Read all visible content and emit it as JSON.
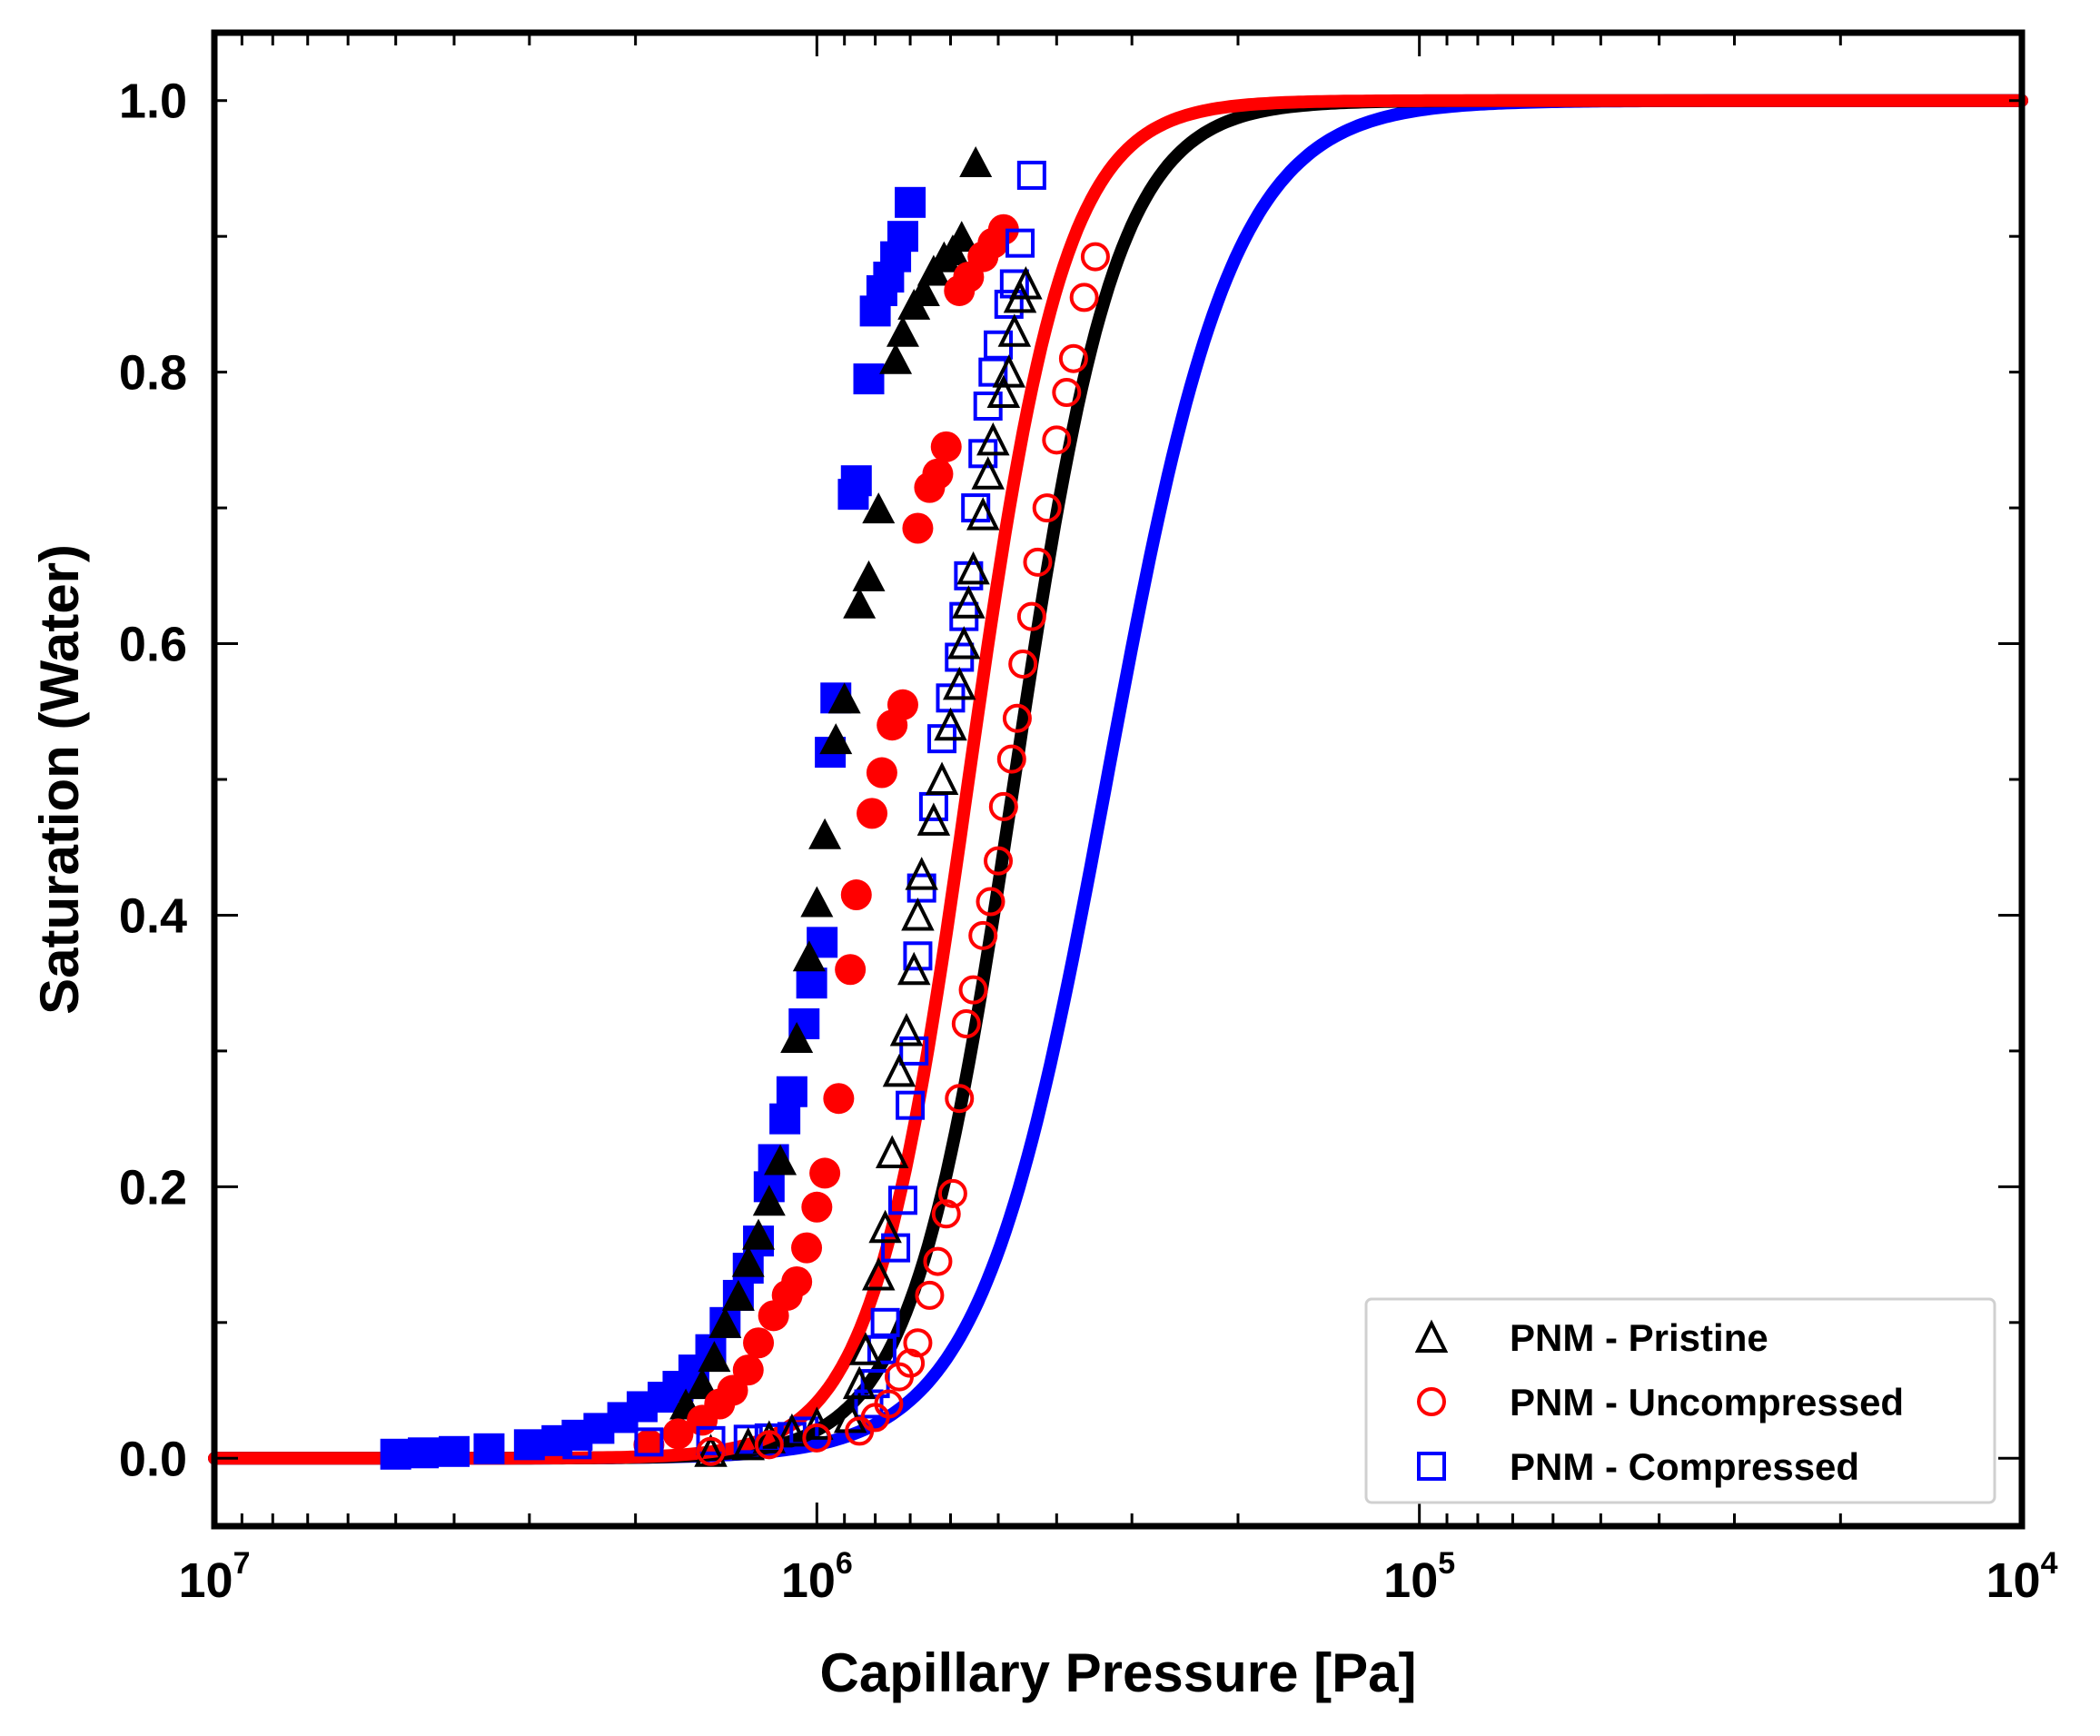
{
  "chart_data": {
    "type": "scatter",
    "xlabel": "Capillary Pressure [Pa]",
    "ylabel": "Saturation (Water)",
    "xscale": "log",
    "xaxis_reversed": true,
    "xlim": [
      10000000,
      10000
    ],
    "ylim": [
      -0.05,
      1.05
    ],
    "x_ticks": [
      {
        "base": "10",
        "exp": "7",
        "value": 10000000
      },
      {
        "base": "10",
        "exp": "6",
        "value": 1000000
      },
      {
        "base": "10",
        "exp": "5",
        "value": 100000
      },
      {
        "base": "10",
        "exp": "4",
        "value": 10000
      }
    ],
    "y_ticks": [
      "0.0",
      "0.2",
      "0.4",
      "0.6",
      "0.8",
      "1.0"
    ],
    "grid": false,
    "legend_position": "lower right",
    "legend": [
      {
        "label": "PNM - Pristine",
        "marker": "triangle-open",
        "color": "#000000"
      },
      {
        "label": "PNM - Uncompressed",
        "marker": "circle-open",
        "color": "#ff0000"
      },
      {
        "label": "PNM - Compressed",
        "marker": "square-open",
        "color": "#0000ff"
      }
    ],
    "curves": [
      {
        "color": "#0000ff",
        "p50": 330000,
        "width": 0.105
      },
      {
        "color": "#000000",
        "p50": 470000,
        "width": 0.085
      },
      {
        "color": "#ff0000",
        "p50": 560000,
        "width": 0.08
      }
    ],
    "series": [
      {
        "marker": "square-filled",
        "color": "#0000ff",
        "points": [
          [
            5000000,
            0.003
          ],
          [
            4500000,
            0.004
          ],
          [
            4000000,
            0.005
          ],
          [
            3500000,
            0.007
          ],
          [
            3000000,
            0.01
          ],
          [
            2700000,
            0.013
          ],
          [
            2500000,
            0.017
          ],
          [
            2300000,
            0.022
          ],
          [
            2100000,
            0.03
          ],
          [
            1950000,
            0.038
          ],
          [
            1800000,
            0.045
          ],
          [
            1700000,
            0.053
          ],
          [
            1600000,
            0.065
          ],
          [
            1500000,
            0.08
          ],
          [
            1420000,
            0.1
          ],
          [
            1350000,
            0.12
          ],
          [
            1300000,
            0.14
          ],
          [
            1250000,
            0.16
          ],
          [
            1200000,
            0.2
          ],
          [
            1180000,
            0.22
          ],
          [
            1130000,
            0.25
          ],
          [
            1100000,
            0.27
          ],
          [
            1050000,
            0.32
          ],
          [
            1020000,
            0.35
          ],
          [
            980000,
            0.38
          ],
          [
            950000,
            0.52
          ],
          [
            930000,
            0.56
          ],
          [
            870000,
            0.71
          ],
          [
            860000,
            0.72
          ],
          [
            820000,
            0.795
          ],
          [
            800000,
            0.845
          ],
          [
            780000,
            0.86
          ],
          [
            760000,
            0.87
          ],
          [
            740000,
            0.885
          ],
          [
            720000,
            0.9
          ],
          [
            700000,
            0.925
          ]
        ]
      },
      {
        "marker": "triangle-filled",
        "color": "#000000",
        "points": [
          [
            1650000,
            0.04
          ],
          [
            1550000,
            0.055
          ],
          [
            1480000,
            0.075
          ],
          [
            1420000,
            0.1
          ],
          [
            1350000,
            0.12
          ],
          [
            1300000,
            0.145
          ],
          [
            1250000,
            0.165
          ],
          [
            1200000,
            0.19
          ],
          [
            1150000,
            0.22
          ],
          [
            1080000,
            0.31
          ],
          [
            1030000,
            0.37
          ],
          [
            1000000,
            0.41
          ],
          [
            970000,
            0.46
          ],
          [
            930000,
            0.53
          ],
          [
            900000,
            0.56
          ],
          [
            850000,
            0.63
          ],
          [
            820000,
            0.65
          ],
          [
            790000,
            0.7
          ],
          [
            740000,
            0.81
          ],
          [
            720000,
            0.83
          ],
          [
            690000,
            0.85
          ],
          [
            665000,
            0.86
          ],
          [
            640000,
            0.875
          ],
          [
            615000,
            0.885
          ],
          [
            595000,
            0.89
          ],
          [
            575000,
            0.9
          ],
          [
            545000,
            0.955
          ]
        ]
      },
      {
        "marker": "circle-filled",
        "color": "#ff0000",
        "points": [
          [
            1900000,
            0.01
          ],
          [
            1700000,
            0.018
          ],
          [
            1550000,
            0.028
          ],
          [
            1450000,
            0.04
          ],
          [
            1380000,
            0.05
          ],
          [
            1300000,
            0.065
          ],
          [
            1250000,
            0.085
          ],
          [
            1180000,
            0.105
          ],
          [
            1120000,
            0.12
          ],
          [
            1080000,
            0.13
          ],
          [
            1040000,
            0.155
          ],
          [
            1000000,
            0.185
          ],
          [
            970000,
            0.21
          ],
          [
            920000,
            0.265
          ],
          [
            880000,
            0.36
          ],
          [
            860000,
            0.415
          ],
          [
            810000,
            0.475
          ],
          [
            780000,
            0.505
          ],
          [
            750000,
            0.54
          ],
          [
            720000,
            0.555
          ],
          [
            680000,
            0.685
          ],
          [
            650000,
            0.715
          ],
          [
            630000,
            0.725
          ],
          [
            610000,
            0.745
          ],
          [
            580000,
            0.86
          ],
          [
            560000,
            0.87
          ],
          [
            530000,
            0.885
          ],
          [
            510000,
            0.895
          ],
          [
            490000,
            0.905
          ]
        ]
      },
      {
        "marker": "square-open",
        "color": "#0000ff",
        "points": [
          [
            2500000,
            0.01
          ],
          [
            1900000,
            0.012
          ],
          [
            1500000,
            0.013
          ],
          [
            1300000,
            0.014
          ],
          [
            1200000,
            0.015
          ],
          [
            1100000,
            0.016
          ],
          [
            1050000,
            0.02
          ],
          [
            820000,
            0.04
          ],
          [
            800000,
            0.055
          ],
          [
            780000,
            0.08
          ],
          [
            770000,
            0.1
          ],
          [
            740000,
            0.155
          ],
          [
            720000,
            0.19
          ],
          [
            700000,
            0.26
          ],
          [
            690000,
            0.3
          ],
          [
            680000,
            0.37
          ],
          [
            670000,
            0.42
          ],
          [
            640000,
            0.48
          ],
          [
            620000,
            0.53
          ],
          [
            600000,
            0.56
          ],
          [
            580000,
            0.59
          ],
          [
            570000,
            0.62
          ],
          [
            560000,
            0.65
          ],
          [
            545000,
            0.7
          ],
          [
            530000,
            0.74
          ],
          [
            520000,
            0.775
          ],
          [
            510000,
            0.8
          ],
          [
            500000,
            0.82
          ],
          [
            480000,
            0.85
          ],
          [
            470000,
            0.865
          ],
          [
            460000,
            0.895
          ],
          [
            440000,
            0.945
          ]
        ]
      },
      {
        "marker": "triangle-open",
        "color": "#000000",
        "points": [
          [
            1500000,
            0.005
          ],
          [
            1300000,
            0.01
          ],
          [
            1200000,
            0.015
          ],
          [
            1100000,
            0.02
          ],
          [
            1000000,
            0.025
          ],
          [
            880000,
            0.03
          ],
          [
            850000,
            0.055
          ],
          [
            830000,
            0.08
          ],
          [
            790000,
            0.135
          ],
          [
            770000,
            0.17
          ],
          [
            750000,
            0.225
          ],
          [
            730000,
            0.285
          ],
          [
            710000,
            0.315
          ],
          [
            690000,
            0.36
          ],
          [
            680000,
            0.4
          ],
          [
            670000,
            0.43
          ],
          [
            640000,
            0.47
          ],
          [
            620000,
            0.5
          ],
          [
            600000,
            0.54
          ],
          [
            580000,
            0.57
          ],
          [
            570000,
            0.6
          ],
          [
            560000,
            0.63
          ],
          [
            550000,
            0.655
          ],
          [
            530000,
            0.695
          ],
          [
            520000,
            0.725
          ],
          [
            510000,
            0.75
          ],
          [
            490000,
            0.785
          ],
          [
            480000,
            0.8
          ],
          [
            470000,
            0.83
          ],
          [
            460000,
            0.855
          ],
          [
            450000,
            0.865
          ]
        ]
      },
      {
        "marker": "circle-open",
        "color": "#ff0000",
        "points": [
          [
            1500000,
            0.005
          ],
          [
            1200000,
            0.01
          ],
          [
            1000000,
            0.015
          ],
          [
            850000,
            0.02
          ],
          [
            800000,
            0.03
          ],
          [
            760000,
            0.04
          ],
          [
            730000,
            0.06
          ],
          [
            700000,
            0.07
          ],
          [
            680000,
            0.085
          ],
          [
            650000,
            0.12
          ],
          [
            630000,
            0.145
          ],
          [
            610000,
            0.18
          ],
          [
            595000,
            0.195
          ],
          [
            580000,
            0.265
          ],
          [
            565000,
            0.32
          ],
          [
            550000,
            0.345
          ],
          [
            530000,
            0.385
          ],
          [
            515000,
            0.41
          ],
          [
            500000,
            0.44
          ],
          [
            490000,
            0.48
          ],
          [
            475000,
            0.515
          ],
          [
            465000,
            0.545
          ],
          [
            455000,
            0.585
          ],
          [
            440000,
            0.62
          ],
          [
            430000,
            0.66
          ],
          [
            415000,
            0.7
          ],
          [
            400000,
            0.75
          ],
          [
            385000,
            0.785
          ],
          [
            375000,
            0.81
          ],
          [
            360000,
            0.855
          ],
          [
            345000,
            0.885
          ]
        ]
      }
    ]
  }
}
